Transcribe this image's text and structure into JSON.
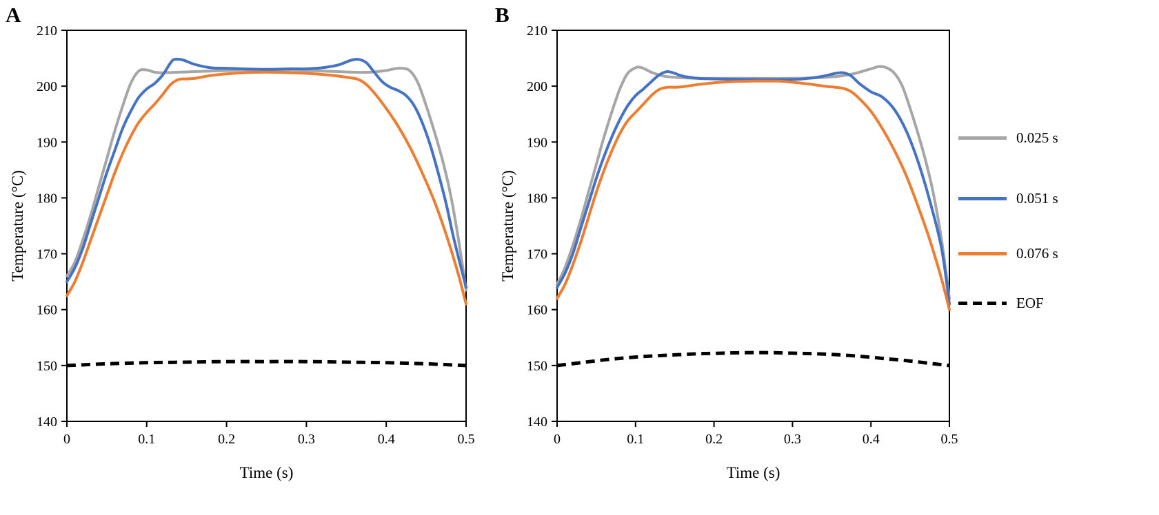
{
  "chart_data": [
    {
      "type": "line",
      "panel_label": "A",
      "xlabel": "Time (s)",
      "ylabel": "Temperature (°C)",
      "xlim": [
        0,
        0.5
      ],
      "ylim": [
        140,
        210
      ],
      "xticks": [
        0,
        0.1,
        0.2,
        0.3,
        0.4,
        0.5
      ],
      "yticks": [
        140,
        150,
        160,
        170,
        180,
        190,
        200,
        210
      ],
      "grid": false,
      "series": [
        {
          "name": "0.025 s",
          "color": "#a6a6a6",
          "dash": null,
          "width": 4,
          "points": [
            [
              0,
              166
            ],
            [
              0.01,
              168.5
            ],
            [
              0.02,
              172.5
            ],
            [
              0.03,
              177
            ],
            [
              0.04,
              182
            ],
            [
              0.05,
              187
            ],
            [
              0.06,
              192
            ],
            [
              0.07,
              196.5
            ],
            [
              0.08,
              200.5
            ],
            [
              0.09,
              202.7
            ],
            [
              0.1,
              202.9
            ],
            [
              0.11,
              202.5
            ],
            [
              0.12,
              202.4
            ],
            [
              0.14,
              202.5
            ],
            [
              0.16,
              202.6
            ],
            [
              0.18,
              202.7
            ],
            [
              0.2,
              202.8
            ],
            [
              0.22,
              202.9
            ],
            [
              0.25,
              202.9
            ],
            [
              0.28,
              202.9
            ],
            [
              0.3,
              202.8
            ],
            [
              0.32,
              202.7
            ],
            [
              0.34,
              202.6
            ],
            [
              0.36,
              202.5
            ],
            [
              0.38,
              202.5
            ],
            [
              0.4,
              202.8
            ],
            [
              0.41,
              203.1
            ],
            [
              0.42,
              203.2
            ],
            [
              0.43,
              202.7
            ],
            [
              0.44,
              200.5
            ],
            [
              0.45,
              196.5
            ],
            [
              0.46,
              192
            ],
            [
              0.47,
              187
            ],
            [
              0.48,
              181
            ],
            [
              0.49,
              173
            ],
            [
              0.5,
              163.5
            ]
          ]
        },
        {
          "name": "0.051 s",
          "color": "#4472c4",
          "dash": null,
          "width": 4,
          "points": [
            [
              0,
              165
            ],
            [
              0.01,
              167.5
            ],
            [
              0.02,
              171
            ],
            [
              0.03,
              175.5
            ],
            [
              0.04,
              180
            ],
            [
              0.05,
              184.5
            ],
            [
              0.06,
              188.5
            ],
            [
              0.07,
              192.5
            ],
            [
              0.08,
              195.5
            ],
            [
              0.09,
              198
            ],
            [
              0.1,
              199.5
            ],
            [
              0.11,
              200.5
            ],
            [
              0.12,
              202
            ],
            [
              0.13,
              204.2
            ],
            [
              0.135,
              204.8
            ],
            [
              0.145,
              204.7
            ],
            [
              0.16,
              203.9
            ],
            [
              0.18,
              203.3
            ],
            [
              0.2,
              203.2
            ],
            [
              0.22,
              203.1
            ],
            [
              0.25,
              203
            ],
            [
              0.28,
              203.1
            ],
            [
              0.3,
              203.1
            ],
            [
              0.32,
              203.3
            ],
            [
              0.34,
              203.8
            ],
            [
              0.355,
              204.6
            ],
            [
              0.365,
              204.8
            ],
            [
              0.375,
              204.2
            ],
            [
              0.385,
              202.5
            ],
            [
              0.395,
              200.8
            ],
            [
              0.405,
              199.8
            ],
            [
              0.415,
              199.2
            ],
            [
              0.425,
              198.3
            ],
            [
              0.435,
              196.5
            ],
            [
              0.445,
              193.5
            ],
            [
              0.455,
              189.5
            ],
            [
              0.465,
              184.5
            ],
            [
              0.475,
              179
            ],
            [
              0.485,
              172.5
            ],
            [
              0.5,
              164
            ]
          ]
        },
        {
          "name": "0.076 s",
          "color": "#ed7d31",
          "dash": null,
          "width": 4,
          "points": [
            [
              0,
              162.5
            ],
            [
              0.01,
              165
            ],
            [
              0.02,
              168.5
            ],
            [
              0.03,
              172.5
            ],
            [
              0.04,
              176.5
            ],
            [
              0.05,
              180.5
            ],
            [
              0.06,
              184.5
            ],
            [
              0.07,
              188
            ],
            [
              0.08,
              191
            ],
            [
              0.09,
              193.5
            ],
            [
              0.1,
              195.3
            ],
            [
              0.11,
              196.8
            ],
            [
              0.12,
              198.5
            ],
            [
              0.13,
              200.3
            ],
            [
              0.14,
              201.2
            ],
            [
              0.15,
              201.3
            ],
            [
              0.16,
              201.4
            ],
            [
              0.18,
              201.9
            ],
            [
              0.2,
              202.2
            ],
            [
              0.22,
              202.4
            ],
            [
              0.25,
              202.5
            ],
            [
              0.28,
              202.4
            ],
            [
              0.3,
              202.3
            ],
            [
              0.32,
              202.1
            ],
            [
              0.34,
              201.8
            ],
            [
              0.355,
              201.5
            ],
            [
              0.365,
              201.2
            ],
            [
              0.375,
              200.3
            ],
            [
              0.385,
              198.8
            ],
            [
              0.4,
              196
            ],
            [
              0.415,
              192.8
            ],
            [
              0.43,
              189
            ],
            [
              0.445,
              184.5
            ],
            [
              0.46,
              179.5
            ],
            [
              0.475,
              173.5
            ],
            [
              0.49,
              166.5
            ],
            [
              0.5,
              161
            ]
          ]
        },
        {
          "name": "EOF",
          "color": "#000000",
          "dash": "13 8",
          "width": 5,
          "points": [
            [
              0,
              150
            ],
            [
              0.05,
              150.3
            ],
            [
              0.1,
              150.5
            ],
            [
              0.15,
              150.6
            ],
            [
              0.2,
              150.7
            ],
            [
              0.25,
              150.7
            ],
            [
              0.3,
              150.7
            ],
            [
              0.35,
              150.6
            ],
            [
              0.4,
              150.5
            ],
            [
              0.45,
              150.3
            ],
            [
              0.5,
              150
            ]
          ]
        }
      ]
    },
    {
      "type": "line",
      "panel_label": "B",
      "xlabel": "Time (s)",
      "ylabel": "Temperature (°C)",
      "xlim": [
        0,
        0.5
      ],
      "ylim": [
        140,
        210
      ],
      "xticks": [
        0,
        0.1,
        0.2,
        0.3,
        0.4,
        0.5
      ],
      "yticks": [
        140,
        150,
        160,
        170,
        180,
        190,
        200,
        210
      ],
      "grid": false,
      "series": [
        {
          "name": "0.025 s",
          "color": "#a6a6a6",
          "dash": null,
          "width": 4,
          "points": [
            [
              0,
              164.5
            ],
            [
              0.01,
              167.5
            ],
            [
              0.02,
              171.5
            ],
            [
              0.03,
              176
            ],
            [
              0.04,
              181
            ],
            [
              0.05,
              186
            ],
            [
              0.06,
              191
            ],
            [
              0.07,
              195.5
            ],
            [
              0.08,
              199.5
            ],
            [
              0.09,
              202.3
            ],
            [
              0.1,
              203.3
            ],
            [
              0.105,
              203.4
            ],
            [
              0.11,
              203.2
            ],
            [
              0.12,
              202.5
            ],
            [
              0.13,
              202
            ],
            [
              0.14,
              201.7
            ],
            [
              0.16,
              201.5
            ],
            [
              0.18,
              201.4
            ],
            [
              0.2,
              201.4
            ],
            [
              0.25,
              201.4
            ],
            [
              0.3,
              201.4
            ],
            [
              0.33,
              201.5
            ],
            [
              0.36,
              201.8
            ],
            [
              0.38,
              202.3
            ],
            [
              0.4,
              203.1
            ],
            [
              0.41,
              203.5
            ],
            [
              0.42,
              203.3
            ],
            [
              0.43,
              202.3
            ],
            [
              0.44,
              200
            ],
            [
              0.45,
              196
            ],
            [
              0.46,
              191.5
            ],
            [
              0.47,
              186.5
            ],
            [
              0.48,
              180.5
            ],
            [
              0.49,
              172.5
            ],
            [
              0.5,
              162
            ]
          ]
        },
        {
          "name": "0.051 s",
          "color": "#4472c4",
          "dash": null,
          "width": 4,
          "points": [
            [
              0,
              164
            ],
            [
              0.01,
              166.5
            ],
            [
              0.02,
              170
            ],
            [
              0.03,
              174.5
            ],
            [
              0.04,
              179
            ],
            [
              0.05,
              183.5
            ],
            [
              0.06,
              187.5
            ],
            [
              0.07,
              191
            ],
            [
              0.08,
              194
            ],
            [
              0.09,
              196.5
            ],
            [
              0.1,
              198.3
            ],
            [
              0.11,
              199.5
            ],
            [
              0.12,
              200.8
            ],
            [
              0.13,
              202
            ],
            [
              0.14,
              202.6
            ],
            [
              0.15,
              202.3
            ],
            [
              0.16,
              201.8
            ],
            [
              0.18,
              201.4
            ],
            [
              0.2,
              201.3
            ],
            [
              0.25,
              201.2
            ],
            [
              0.3,
              201.2
            ],
            [
              0.32,
              201.4
            ],
            [
              0.34,
              201.8
            ],
            [
              0.355,
              202.3
            ],
            [
              0.365,
              202.4
            ],
            [
              0.375,
              201.8
            ],
            [
              0.385,
              200.5
            ],
            [
              0.4,
              199
            ],
            [
              0.415,
              198
            ],
            [
              0.43,
              195.8
            ],
            [
              0.445,
              192
            ],
            [
              0.46,
              186.5
            ],
            [
              0.475,
              179.5
            ],
            [
              0.49,
              171
            ],
            [
              0.5,
              161
            ]
          ]
        },
        {
          "name": "0.076 s",
          "color": "#ed7d31",
          "dash": null,
          "width": 4,
          "points": [
            [
              0,
              162
            ],
            [
              0.01,
              164.5
            ],
            [
              0.02,
              168
            ],
            [
              0.03,
              172
            ],
            [
              0.04,
              176.5
            ],
            [
              0.05,
              181
            ],
            [
              0.06,
              185
            ],
            [
              0.07,
              188.5
            ],
            [
              0.08,
              191.5
            ],
            [
              0.09,
              193.8
            ],
            [
              0.1,
              195.3
            ],
            [
              0.11,
              196.8
            ],
            [
              0.12,
              198.3
            ],
            [
              0.13,
              199.4
            ],
            [
              0.14,
              199.8
            ],
            [
              0.15,
              199.8
            ],
            [
              0.16,
              199.9
            ],
            [
              0.18,
              200.3
            ],
            [
              0.2,
              200.6
            ],
            [
              0.22,
              200.8
            ],
            [
              0.25,
              200.9
            ],
            [
              0.28,
              200.9
            ],
            [
              0.3,
              200.7
            ],
            [
              0.32,
              200.4
            ],
            [
              0.34,
              200
            ],
            [
              0.355,
              199.8
            ],
            [
              0.365,
              199.6
            ],
            [
              0.375,
              199
            ],
            [
              0.385,
              197.8
            ],
            [
              0.4,
              195.5
            ],
            [
              0.415,
              192.3
            ],
            [
              0.43,
              188.5
            ],
            [
              0.445,
              184
            ],
            [
              0.46,
              178.5
            ],
            [
              0.475,
              172.5
            ],
            [
              0.49,
              165.5
            ],
            [
              0.5,
              160
            ]
          ]
        },
        {
          "name": "EOF",
          "color": "#000000",
          "dash": "13 8",
          "width": 5,
          "points": [
            [
              0,
              150
            ],
            [
              0.03,
              150.5
            ],
            [
              0.06,
              151
            ],
            [
              0.09,
              151.4
            ],
            [
              0.12,
              151.7
            ],
            [
              0.15,
              151.9
            ],
            [
              0.18,
              152.1
            ],
            [
              0.21,
              152.2
            ],
            [
              0.24,
              152.3
            ],
            [
              0.27,
              152.3
            ],
            [
              0.3,
              152.2
            ],
            [
              0.33,
              152.1
            ],
            [
              0.36,
              151.9
            ],
            [
              0.39,
              151.6
            ],
            [
              0.42,
              151.2
            ],
            [
              0.45,
              150.8
            ],
            [
              0.48,
              150.3
            ],
            [
              0.5,
              150
            ]
          ]
        }
      ]
    }
  ],
  "legend": {
    "position": "right",
    "items": [
      {
        "label": "0.025 s",
        "color": "#a6a6a6",
        "dash": false
      },
      {
        "label": "0.051 s",
        "color": "#4472c4",
        "dash": false
      },
      {
        "label": "0.076 s",
        "color": "#ed7d31",
        "dash": false
      },
      {
        "label": "EOF",
        "color": "#000000",
        "dash": true
      }
    ]
  }
}
